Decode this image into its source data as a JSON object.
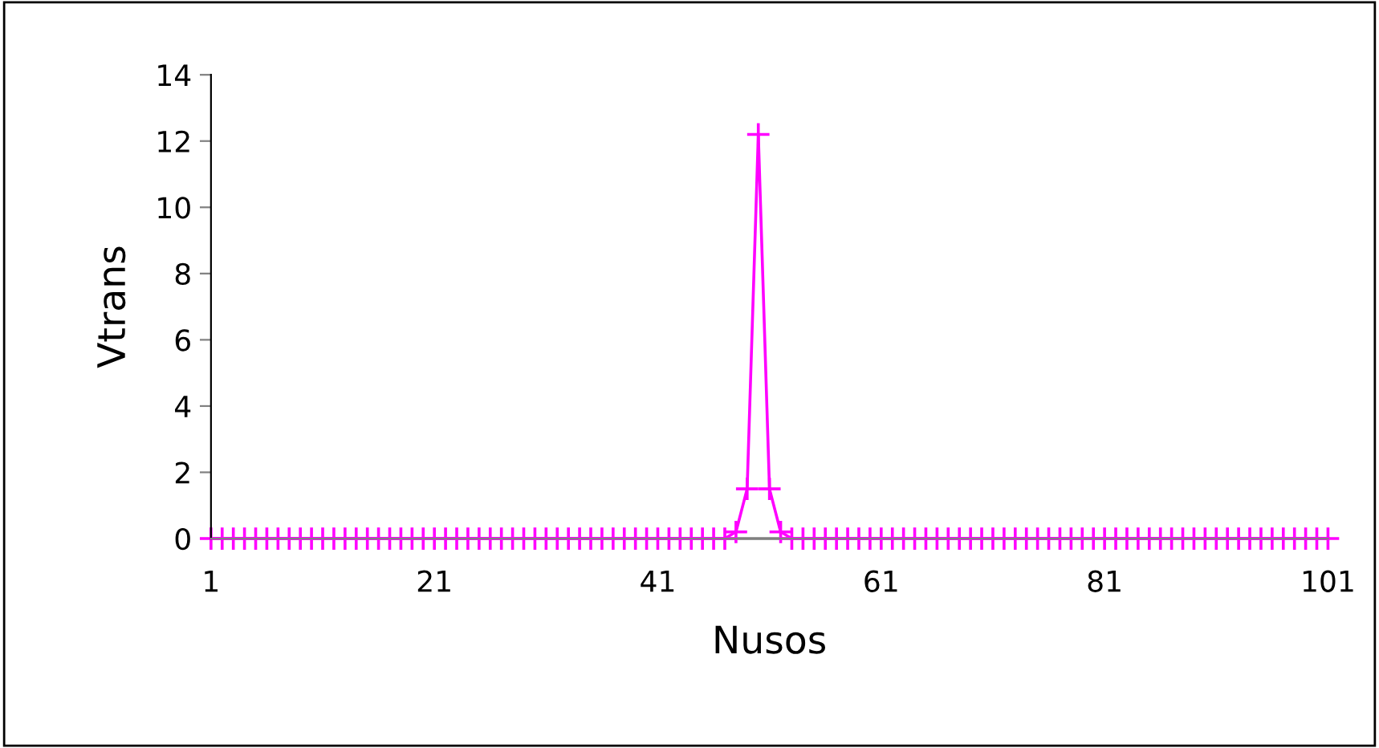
{
  "chart_data": {
    "type": "line",
    "xlabel": "Nusos",
    "ylabel": "Vtrans",
    "x": [
      1,
      2,
      3,
      4,
      5,
      6,
      7,
      8,
      9,
      10,
      11,
      12,
      13,
      14,
      15,
      16,
      17,
      18,
      19,
      20,
      21,
      22,
      23,
      24,
      25,
      26,
      27,
      28,
      29,
      30,
      31,
      32,
      33,
      34,
      35,
      36,
      37,
      38,
      39,
      40,
      41,
      42,
      43,
      44,
      45,
      46,
      47,
      48,
      49,
      50,
      51,
      52,
      53,
      54,
      55,
      56,
      57,
      58,
      59,
      60,
      61,
      62,
      63,
      64,
      65,
      66,
      67,
      68,
      69,
      70,
      71,
      72,
      73,
      74,
      75,
      76,
      77,
      78,
      79,
      80,
      81,
      82,
      83,
      84,
      85,
      86,
      87,
      88,
      89,
      90,
      91,
      92,
      93,
      94,
      95,
      96,
      97,
      98,
      99,
      100,
      101
    ],
    "series": [
      {
        "color": "#808080",
        "marker": "none",
        "values": [
          0,
          0,
          0,
          0,
          0,
          0,
          0,
          0,
          0,
          0,
          0,
          0,
          0,
          0,
          0,
          0,
          0,
          0,
          0,
          0,
          0,
          0,
          0,
          0,
          0,
          0,
          0,
          0,
          0,
          0,
          0,
          0,
          0,
          0,
          0,
          0,
          0,
          0,
          0,
          0,
          0,
          0,
          0,
          0,
          0,
          0,
          0,
          0,
          0,
          0,
          0,
          0,
          0,
          0,
          0,
          0,
          0,
          0,
          0,
          0,
          0,
          0,
          0,
          0,
          0,
          0,
          0,
          0,
          0,
          0,
          0,
          0,
          0,
          0,
          0,
          0,
          0,
          0,
          0,
          0,
          0,
          0,
          0,
          0,
          0,
          0,
          0,
          0,
          0,
          0,
          0,
          0,
          0,
          0,
          0,
          0,
          0,
          0,
          0,
          0,
          0
        ]
      },
      {
        "color": "#ff00ff",
        "marker": "cross",
        "values": [
          0,
          0,
          0,
          0,
          0,
          0,
          0,
          0,
          0,
          0,
          0,
          0,
          0,
          0,
          0,
          0,
          0,
          0,
          0,
          0,
          0,
          0,
          0,
          0,
          0,
          0,
          0,
          0,
          0,
          0,
          0,
          0,
          0,
          0,
          0,
          0,
          0,
          0,
          0,
          0,
          0,
          0,
          0,
          0,
          0,
          0,
          0,
          0.2,
          1.5,
          12.2,
          1.5,
          0.2,
          0,
          0,
          0,
          0,
          0,
          0,
          0,
          0,
          0,
          0,
          0,
          0,
          0,
          0,
          0,
          0,
          0,
          0,
          0,
          0,
          0,
          0,
          0,
          0,
          0,
          0,
          0,
          0,
          0,
          0,
          0,
          0,
          0,
          0,
          0,
          0,
          0,
          0,
          0,
          0,
          0,
          0,
          0,
          0,
          0,
          0,
          0,
          0,
          0
        ]
      }
    ],
    "xlim": [
      1,
      101
    ],
    "xticks": [
      1,
      21,
      41,
      61,
      81,
      101
    ],
    "ylim": [
      0,
      14
    ],
    "yticks": [
      0,
      2,
      4,
      6,
      8,
      10,
      12,
      14
    ],
    "grid": false,
    "legend": false,
    "line_style": "solid"
  }
}
